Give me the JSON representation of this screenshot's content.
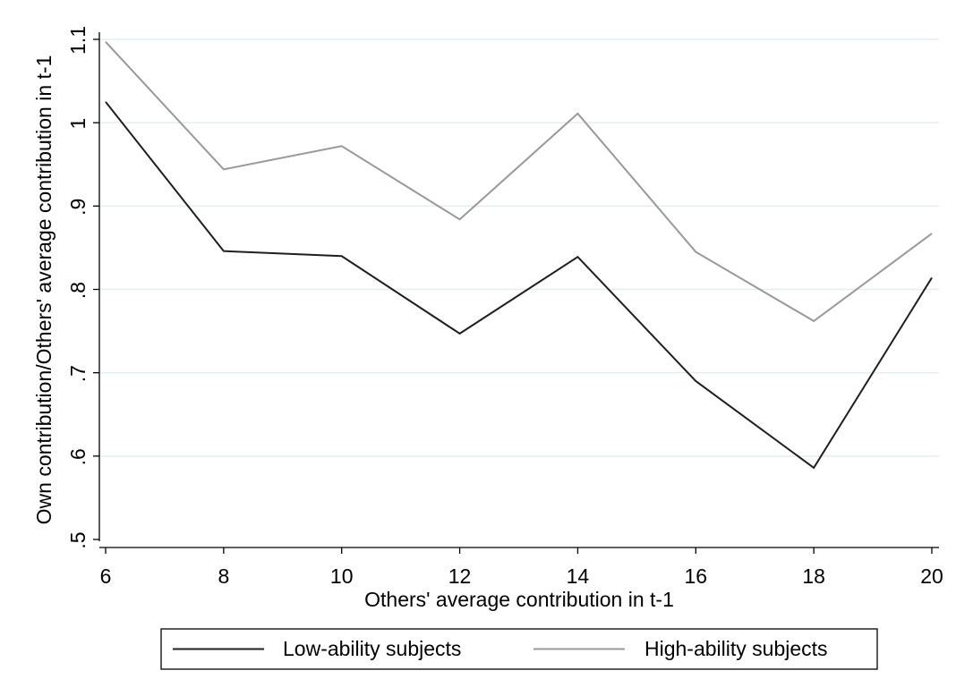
{
  "chart_data": {
    "type": "line",
    "xlabel": "Others' average contribution in t-1",
    "ylabel": "Own contribution/Others' average contribution in t-1",
    "x": [
      6,
      8,
      10,
      12,
      14,
      16,
      18,
      20
    ],
    "xticks": [
      "6",
      "8",
      "10",
      "12",
      "14",
      "16",
      "18",
      "20"
    ],
    "yticks": [
      {
        "value": 0.5,
        "label": ".5"
      },
      {
        "value": 0.6,
        "label": ".6"
      },
      {
        "value": 0.7,
        "label": ".7"
      },
      {
        "value": 0.8,
        "label": ".8"
      },
      {
        "value": 0.9,
        "label": ".9"
      },
      {
        "value": 1.0,
        "label": "1"
      },
      {
        "value": 1.1,
        "label": "1.1"
      }
    ],
    "xlim": [
      6,
      20
    ],
    "ylim": [
      0.5,
      1.1
    ],
    "grid": true,
    "legend_position": "bottom",
    "series": [
      {
        "name": "Low-ability subjects",
        "color": "#1f1f1f",
        "values": [
          1.025,
          0.846,
          0.84,
          0.747,
          0.839,
          0.69,
          0.586,
          0.814
        ]
      },
      {
        "name": "High-ability subjects",
        "color": "#999999",
        "values": [
          1.097,
          0.944,
          0.972,
          0.884,
          1.011,
          0.845,
          0.762,
          0.867
        ]
      }
    ]
  }
}
